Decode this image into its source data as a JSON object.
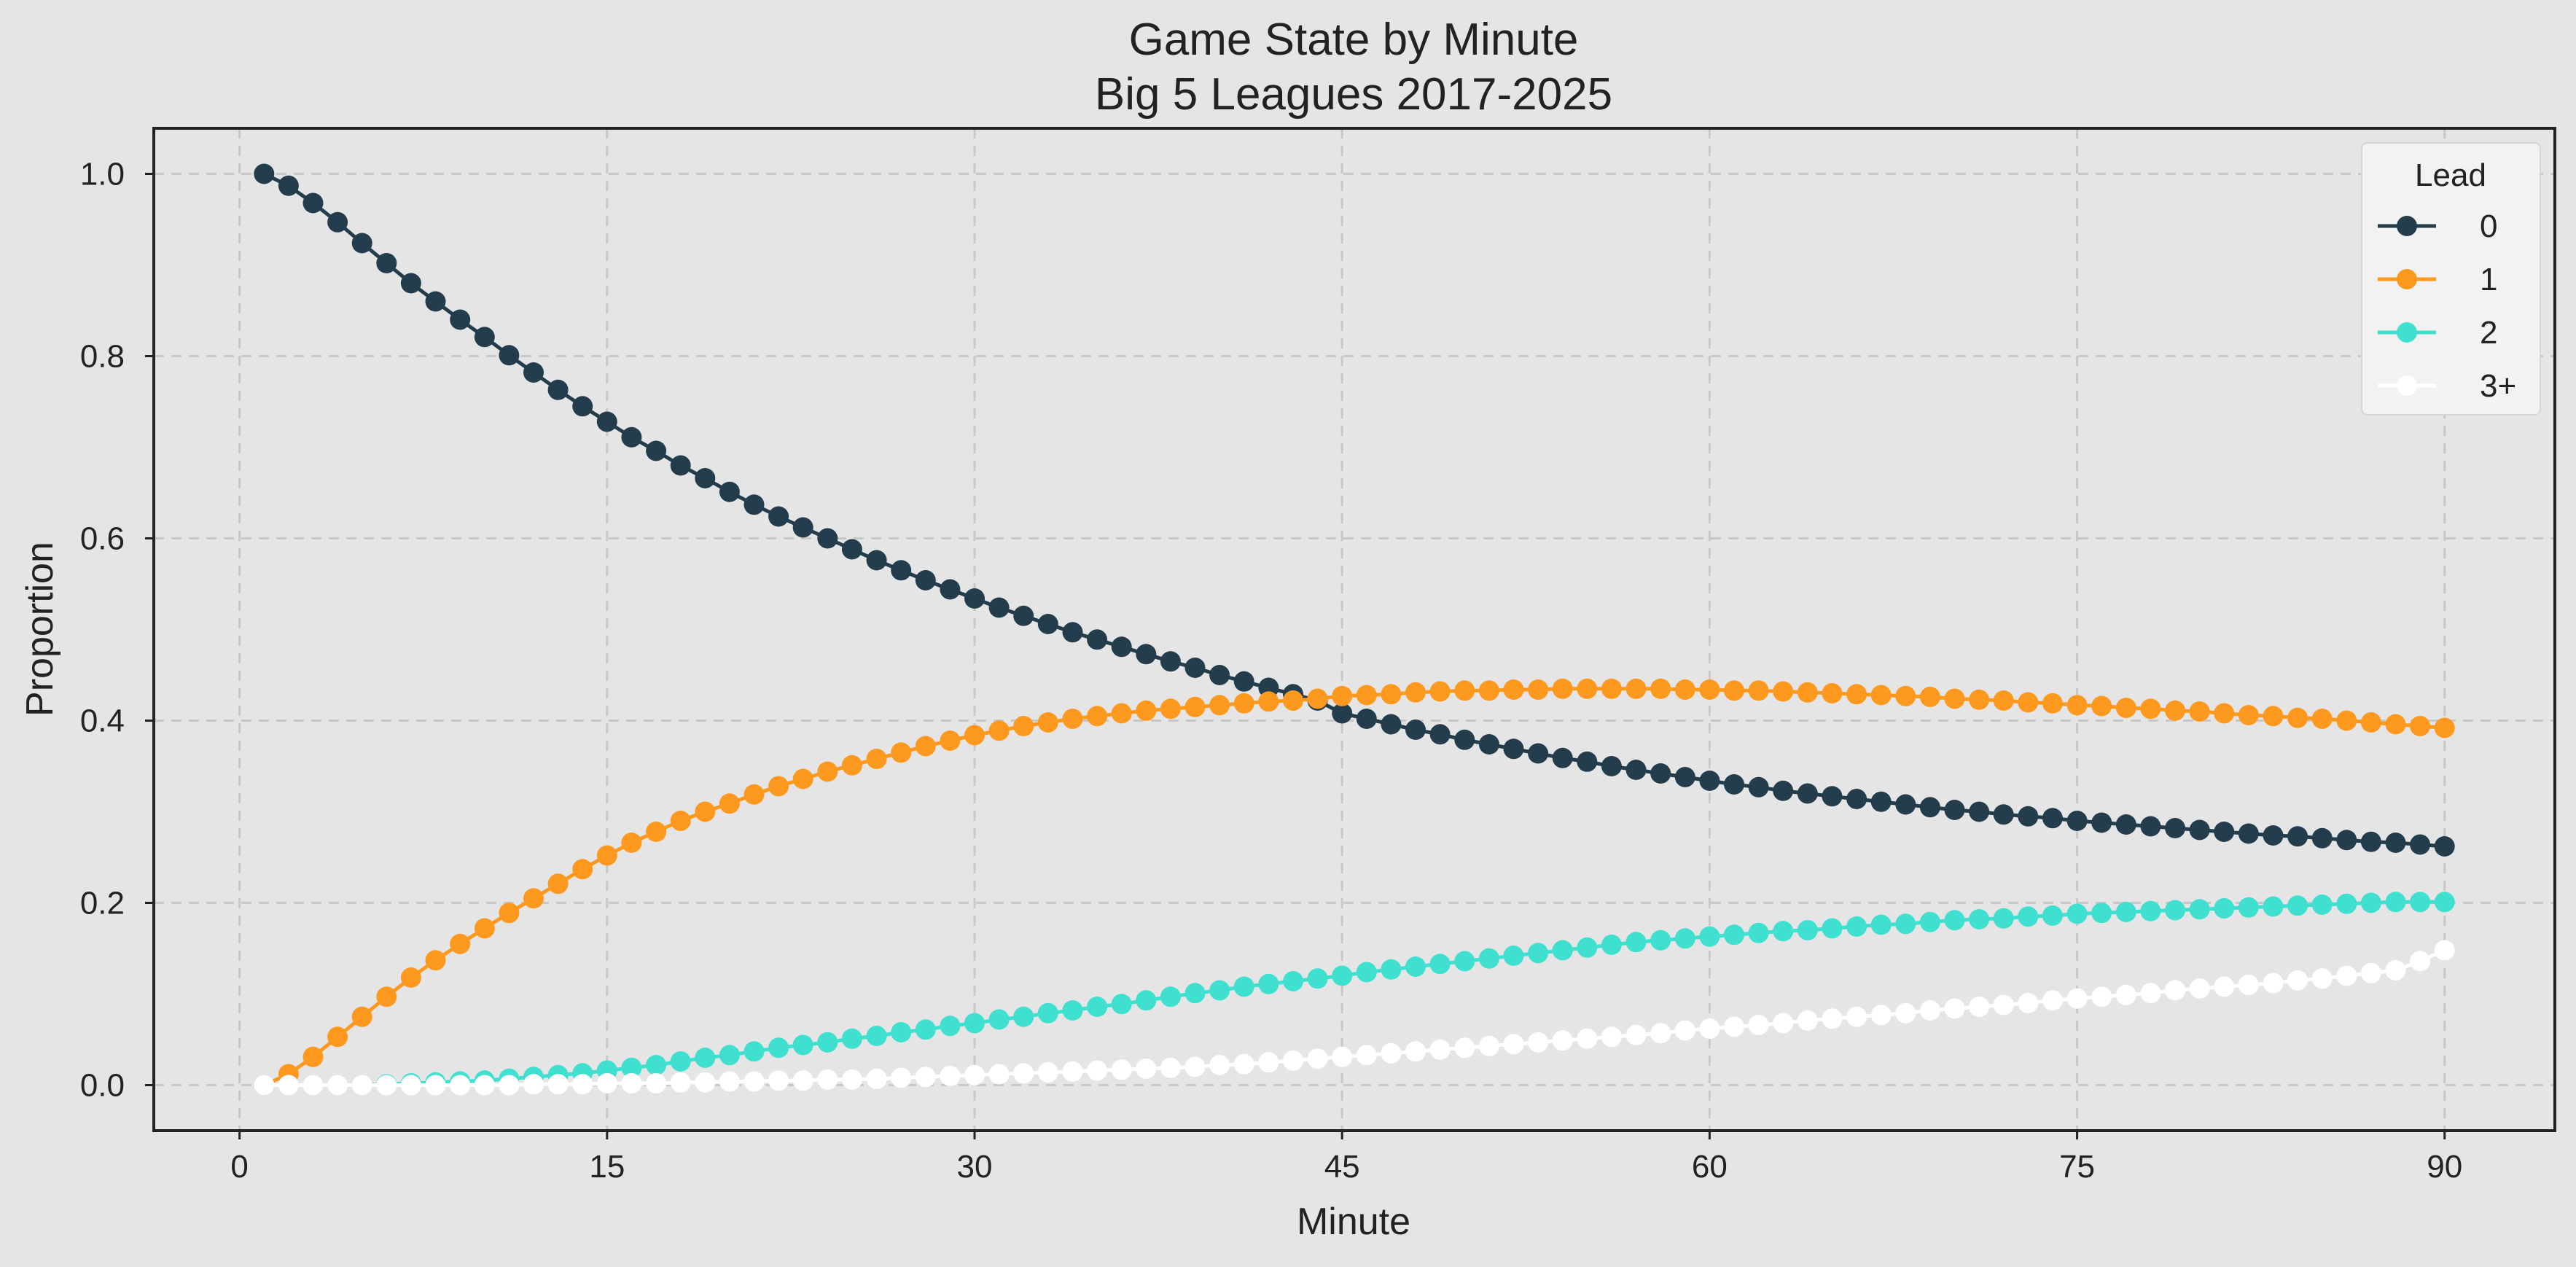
{
  "chart_data": {
    "type": "line",
    "title_lines": [
      "Game State by Minute",
      "Big 5 Leagues 2017-2025"
    ],
    "xlabel": "Minute",
    "ylabel": "Proportion",
    "xlim": [
      -3.5,
      94.5
    ],
    "ylim": [
      -0.05,
      1.05
    ],
    "xticks": [
      0,
      15,
      30,
      45,
      60,
      75,
      90
    ],
    "yticks": [
      0.0,
      0.2,
      0.4,
      0.6,
      0.8,
      1.0
    ],
    "ytick_labels": [
      "0.0",
      "0.2",
      "0.4",
      "0.6",
      "0.8",
      "1.0"
    ],
    "grid": true,
    "background": "#e5e5e5",
    "legend": {
      "title": "Lead",
      "placement": "top-right"
    },
    "x": [
      1,
      2,
      3,
      4,
      5,
      6,
      7,
      8,
      9,
      10,
      11,
      12,
      13,
      14,
      15,
      16,
      17,
      18,
      19,
      20,
      21,
      22,
      23,
      24,
      25,
      26,
      27,
      28,
      29,
      30,
      31,
      32,
      33,
      34,
      35,
      36,
      37,
      38,
      39,
      40,
      41,
      42,
      43,
      44,
      45,
      46,
      47,
      48,
      49,
      50,
      51,
      52,
      53,
      54,
      55,
      56,
      57,
      58,
      59,
      60,
      61,
      62,
      63,
      64,
      65,
      66,
      67,
      68,
      69,
      70,
      71,
      72,
      73,
      74,
      75,
      76,
      77,
      78,
      79,
      80,
      81,
      82,
      83,
      84,
      85,
      86,
      87,
      88,
      89,
      90
    ],
    "series": [
      {
        "name": "0",
        "color": "#233d4d",
        "values": [
          1.0,
          0.987,
          0.968,
          0.947,
          0.924,
          0.902,
          0.88,
          0.86,
          0.84,
          0.821,
          0.801,
          0.782,
          0.763,
          0.745,
          0.728,
          0.711,
          0.696,
          0.68,
          0.666,
          0.651,
          0.637,
          0.624,
          0.612,
          0.6,
          0.588,
          0.576,
          0.565,
          0.554,
          0.544,
          0.534,
          0.524,
          0.515,
          0.506,
          0.497,
          0.489,
          0.481,
          0.473,
          0.465,
          0.458,
          0.45,
          0.443,
          0.436,
          0.429,
          0.422,
          0.408,
          0.402,
          0.396,
          0.39,
          0.385,
          0.379,
          0.374,
          0.369,
          0.364,
          0.359,
          0.355,
          0.35,
          0.346,
          0.342,
          0.338,
          0.334,
          0.33,
          0.327,
          0.323,
          0.32,
          0.317,
          0.314,
          0.311,
          0.308,
          0.305,
          0.302,
          0.3,
          0.297,
          0.295,
          0.293,
          0.29,
          0.288,
          0.286,
          0.284,
          0.282,
          0.28,
          0.278,
          0.276,
          0.274,
          0.273,
          0.271,
          0.269,
          0.267,
          0.266,
          0.264,
          0.262
        ]
      },
      {
        "name": "1",
        "color": "#fe9920",
        "values": [
          0.0,
          0.012,
          0.031,
          0.053,
          0.075,
          0.097,
          0.118,
          0.137,
          0.155,
          0.172,
          0.189,
          0.205,
          0.221,
          0.237,
          0.252,
          0.266,
          0.278,
          0.29,
          0.3,
          0.309,
          0.319,
          0.328,
          0.336,
          0.344,
          0.351,
          0.358,
          0.365,
          0.372,
          0.378,
          0.384,
          0.389,
          0.394,
          0.398,
          0.402,
          0.405,
          0.408,
          0.411,
          0.413,
          0.415,
          0.417,
          0.419,
          0.421,
          0.422,
          0.424,
          0.427,
          0.428,
          0.429,
          0.431,
          0.432,
          0.433,
          0.433,
          0.434,
          0.434,
          0.435,
          0.435,
          0.435,
          0.435,
          0.435,
          0.434,
          0.434,
          0.433,
          0.433,
          0.432,
          0.431,
          0.43,
          0.429,
          0.428,
          0.427,
          0.426,
          0.424,
          0.423,
          0.422,
          0.42,
          0.419,
          0.417,
          0.416,
          0.414,
          0.413,
          0.411,
          0.41,
          0.408,
          0.406,
          0.405,
          0.403,
          0.402,
          0.4,
          0.398,
          0.396,
          0.394,
          0.392
        ]
      },
      {
        "name": "2",
        "color": "#40e0d0",
        "values": [
          0.0,
          0.0,
          0.0,
          0.0,
          0.0,
          0.001,
          0.002,
          0.003,
          0.004,
          0.005,
          0.007,
          0.009,
          0.011,
          0.013,
          0.016,
          0.019,
          0.022,
          0.026,
          0.03,
          0.033,
          0.037,
          0.041,
          0.044,
          0.047,
          0.051,
          0.054,
          0.058,
          0.061,
          0.065,
          0.068,
          0.072,
          0.075,
          0.079,
          0.082,
          0.086,
          0.089,
          0.093,
          0.097,
          0.101,
          0.104,
          0.108,
          0.111,
          0.114,
          0.117,
          0.12,
          0.124,
          0.127,
          0.13,
          0.133,
          0.136,
          0.139,
          0.142,
          0.145,
          0.148,
          0.151,
          0.154,
          0.157,
          0.159,
          0.161,
          0.163,
          0.165,
          0.167,
          0.169,
          0.17,
          0.172,
          0.174,
          0.176,
          0.177,
          0.179,
          0.181,
          0.182,
          0.183,
          0.185,
          0.186,
          0.188,
          0.189,
          0.19,
          0.191,
          0.192,
          0.193,
          0.194,
          0.195,
          0.196,
          0.197,
          0.198,
          0.199,
          0.2,
          0.201,
          0.201,
          0.201
        ]
      },
      {
        "name": "3+",
        "color": "#ffffff",
        "values": [
          0.0,
          0.0,
          0.0,
          0.0,
          0.0,
          0.0,
          0.0,
          0.0,
          0.0,
          0.0,
          0.0,
          0.001,
          0.001,
          0.001,
          0.002,
          0.002,
          0.002,
          0.003,
          0.003,
          0.004,
          0.004,
          0.005,
          0.005,
          0.006,
          0.006,
          0.007,
          0.008,
          0.009,
          0.01,
          0.011,
          0.012,
          0.013,
          0.014,
          0.015,
          0.016,
          0.017,
          0.018,
          0.019,
          0.02,
          0.022,
          0.023,
          0.025,
          0.027,
          0.029,
          0.031,
          0.033,
          0.035,
          0.037,
          0.039,
          0.041,
          0.043,
          0.045,
          0.047,
          0.049,
          0.051,
          0.053,
          0.055,
          0.057,
          0.06,
          0.062,
          0.064,
          0.066,
          0.068,
          0.071,
          0.073,
          0.075,
          0.077,
          0.079,
          0.082,
          0.084,
          0.086,
          0.088,
          0.09,
          0.093,
          0.095,
          0.097,
          0.099,
          0.101,
          0.104,
          0.106,
          0.108,
          0.11,
          0.112,
          0.115,
          0.117,
          0.12,
          0.123,
          0.126,
          0.136,
          0.148
        ]
      }
    ]
  }
}
